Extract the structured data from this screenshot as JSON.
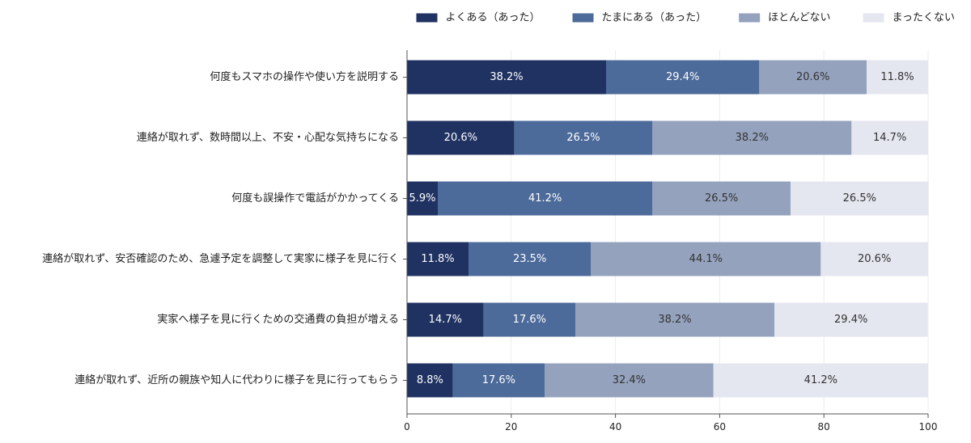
{
  "chart_data": {
    "type": "bar",
    "orientation": "horizontal",
    "stacked": true,
    "title": "",
    "xlabel": "",
    "ylabel": "",
    "xlim": [
      0,
      100
    ],
    "xticks": [
      0,
      20,
      40,
      60,
      80,
      100
    ],
    "grid": true,
    "legend_position": "top-right",
    "categories": [
      "何度もスマホの操作や使い方を説明する",
      "連絡が取れず、数時間以上、不安・心配な気持ちになる",
      "何度も誤操作で電話がかかってくる",
      "連絡が取れず、安否確認のため、急遽予定を調整して実家に様子を見に行く",
      "実家へ様子を見に行くための交通費の負担が増える",
      "連絡が取れず、近所の親族や知人に代わりに様子を見に行ってもらう"
    ],
    "series": [
      {
        "name": "よくある（あった）",
        "color": "#1f3262",
        "label_color": "#ffffff",
        "values": [
          38.2,
          20.6,
          5.9,
          11.8,
          14.7,
          8.8
        ]
      },
      {
        "name": "たまにある（あった）",
        "color": "#4c6a9a",
        "label_color": "#ffffff",
        "values": [
          29.4,
          26.5,
          41.2,
          23.5,
          17.6,
          17.6
        ]
      },
      {
        "name": "ほとんどない",
        "color": "#94a2bd",
        "label_color": "#333333",
        "values": [
          20.6,
          38.2,
          26.5,
          44.1,
          38.2,
          32.4
        ]
      },
      {
        "name": "まったくない",
        "color": "#e4e6f0",
        "label_color": "#333333",
        "values": [
          11.8,
          14.7,
          26.5,
          20.6,
          29.4,
          41.2
        ]
      }
    ],
    "value_labels": [
      [
        "38.2%",
        "29.4%",
        "20.6%",
        "11.8%"
      ],
      [
        "20.6%",
        "26.5%",
        "38.2%",
        "14.7%"
      ],
      [
        "5.9%",
        "41.2%",
        "26.5%",
        "26.5%"
      ],
      [
        "11.8%",
        "23.5%",
        "44.1%",
        "20.6%"
      ],
      [
        "14.7%",
        "17.6%",
        "38.2%",
        "29.4%"
      ],
      [
        "8.8%",
        "17.6%",
        "32.4%",
        "41.2%"
      ]
    ]
  }
}
